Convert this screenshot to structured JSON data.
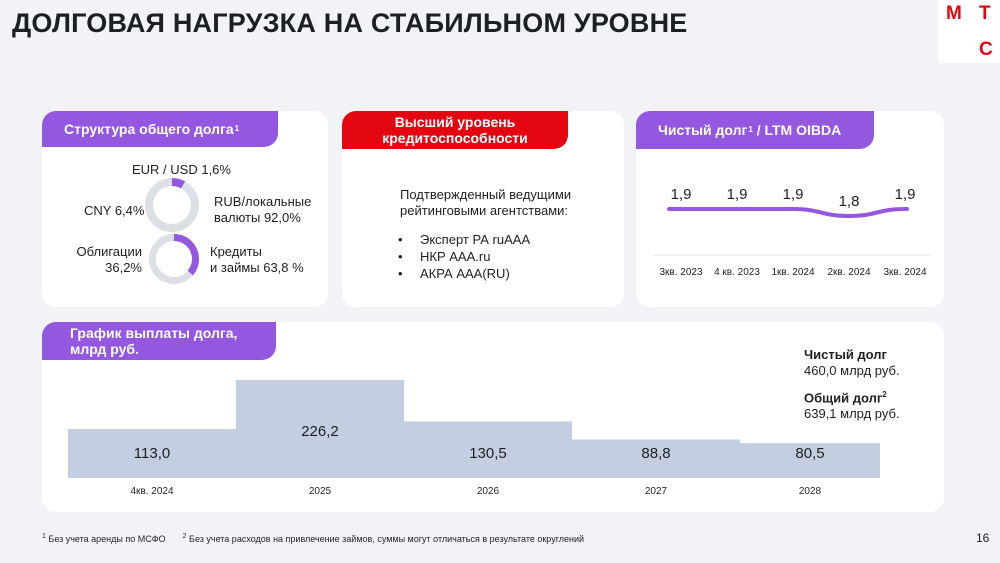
{
  "page": {
    "title": "ДОЛГОВАЯ НАГРУЗКА НА СТАБИЛЬНОМ УРОВНЕ",
    "page_number": "16",
    "logo_letters": [
      "М",
      "Т",
      "С"
    ]
  },
  "colors": {
    "purple": "#9357e0",
    "red": "#e30611",
    "bar": "#c3cee0",
    "donut_track": "#dcdfe5",
    "line": "#9357e0"
  },
  "structure": {
    "header": "Структура общего долга",
    "header_sup": "1",
    "currency_label_top": "EUR / USD 1,6%",
    "currency_label_left": "CNY 6,4%",
    "currency_label_right_1": "RUB/локальные",
    "currency_label_right_2": "валюты 92,0%",
    "instrument_label_left_1": "Облигации",
    "instrument_label_left_2": "36,2%",
    "instrument_label_right_1": "Кредиты",
    "instrument_label_right_2": "и займы 63,8 %",
    "donut_currency": [
      {
        "name": "EUR / USD",
        "value": 1.6
      },
      {
        "name": "CNY",
        "value": 6.4
      },
      {
        "name": "RUB/локальные валюты",
        "value": 92.0
      }
    ],
    "donut_instruments": [
      {
        "name": "Облигации",
        "value": 36.2
      },
      {
        "name": "Кредиты и займы",
        "value": 63.8
      }
    ]
  },
  "ratings": {
    "header_1": "Высший уровень",
    "header_2": "кредитоспособности",
    "intro_1": "Подтвержденный ведущими",
    "intro_2": "рейтинговыми агентствами:",
    "items": [
      "Эксперт РА ruAAA",
      "НКР AAA.ru",
      "АКРА AAA(RU)"
    ]
  },
  "leverage_chart": {
    "header": "Чистый долг",
    "header_sup": "1",
    "header_rest": " / LTM OIBDA"
  },
  "repayment": {
    "header_1": "График выплаты долга,",
    "header_2": "млрд руб.",
    "net_debt_label": "Чистый долг",
    "net_debt_value": "460,0 млрд руб.",
    "total_debt_label": "Общий долг",
    "total_debt_sup": "2",
    "total_debt_value": "639,1 млрд руб."
  },
  "footnotes": {
    "note1_sup": "1",
    "note1": " Без учета аренды по МСФО",
    "note2_sup": "2",
    "note2": " Без учета расходов на привлечение займов, суммы могут отличаться в результате округлений"
  },
  "chart_data": [
    {
      "type": "line",
      "title": "Чистый долг / LTM OIBDA",
      "categories": [
        "3кв. 2023",
        "4 кв. 2023",
        "1кв. 2024",
        "2кв. 2024",
        "3кв. 2024"
      ],
      "values": [
        1.9,
        1.9,
        1.9,
        1.8,
        1.9
      ],
      "labels": [
        "1,9",
        "1,9",
        "1,9",
        "1,8",
        "1,9"
      ],
      "grid": false
    },
    {
      "type": "bar",
      "title": "График выплаты долга, млрд руб.",
      "categories": [
        "4кв. 2024",
        "2025",
        "2026",
        "2027",
        "2028"
      ],
      "values": [
        113.0,
        226.2,
        130.5,
        88.8,
        80.5
      ],
      "labels": [
        "113,0",
        "226,2",
        "130,5",
        "88,8",
        "80,5"
      ],
      "ylim": [
        0,
        230
      ],
      "grid": false
    }
  ]
}
